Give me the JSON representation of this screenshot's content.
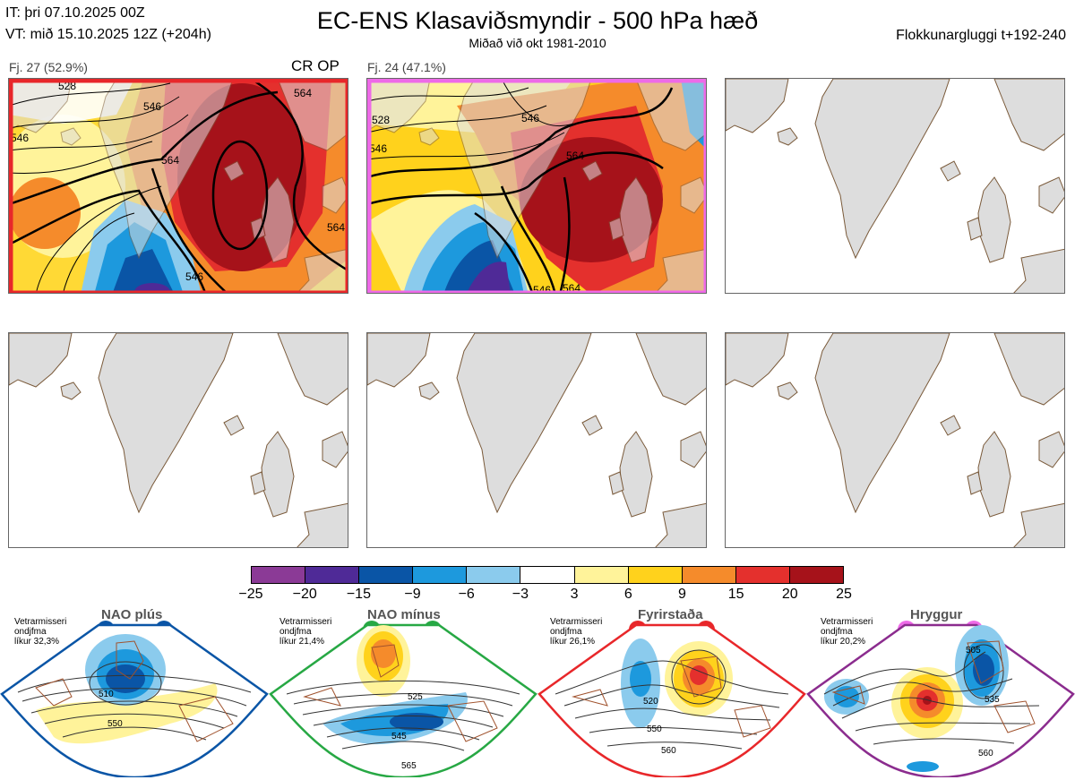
{
  "header": {
    "it_line": "IT: þri 07.10.2025 00Z",
    "vt_line": "VT: mið 15.10.2025 12Z  (+204h)",
    "title": "EC-ENS Klasaviðsmyndir - 500 hPa hæð",
    "subtitle": "Miðað við okt 1981-2010",
    "window": "Flokkunargluggi t+192-240"
  },
  "clusters": [
    {
      "label": "Fj. 27 (52.9%)",
      "members": 27,
      "percent": 52.9,
      "tag": "CR OP",
      "frame_color": "#e8272a",
      "contour_labels": [
        "528",
        "546",
        "564",
        "564",
        "546",
        "564",
        "546"
      ]
    },
    {
      "label": "Fj. 24 (47.1%)",
      "members": 24,
      "percent": 47.1,
      "tag": "",
      "frame_color": "#ee6ae8",
      "contour_labels": [
        "528",
        "546",
        "546",
        "564",
        "546",
        "564"
      ]
    }
  ],
  "colorbar": {
    "ticks": [
      "−25",
      "−20",
      "−15",
      "−9",
      "−6",
      "−3",
      "3",
      "6",
      "9",
      "15",
      "20",
      "25"
    ],
    "colors": [
      "#8b3a96",
      "#4f2a97",
      "#0a55a6",
      "#1d99dd",
      "#8bcbed",
      "#ffffff",
      "#fff39a",
      "#ffd21c",
      "#f58b2b",
      "#e4302d",
      "#a6121a"
    ]
  },
  "regimes": [
    {
      "title": "NAO plús",
      "info": [
        "Vetrarmisseri",
        "ondjfma",
        "líkur 32,3%"
      ],
      "color": "#0a55a6",
      "labels": [
        "510",
        "550"
      ]
    },
    {
      "title": "NAO mínus",
      "info": [
        "Vetrarmisseri",
        "ondjfma",
        "líkur 21,4%"
      ],
      "color": "#27a844",
      "labels": [
        "525",
        "545",
        "565"
      ]
    },
    {
      "title": "Fyrirstaða",
      "info": [
        "Vetrarmisseri",
        "ondjfma",
        "líkur 26,1%"
      ],
      "color": "#e8272a",
      "labels": [
        "520",
        "550",
        "560"
      ]
    },
    {
      "title": "Hryggur",
      "info": [
        "Vetrarmisseri",
        "ondjfma",
        "líkur 20,2%"
      ],
      "color": "#ee6ae8",
      "labels": [
        "505",
        "535",
        "560"
      ]
    }
  ],
  "icons": {
    "land": "landmass-icon",
    "regime_dot": "regime-dot-icon"
  }
}
